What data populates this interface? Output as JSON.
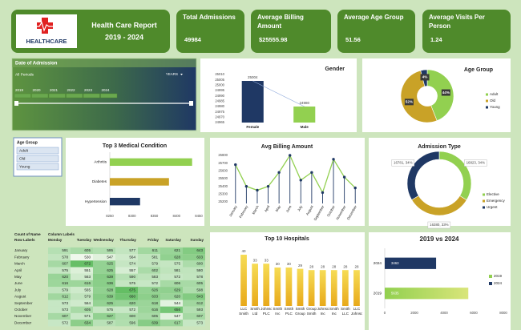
{
  "header": {
    "logo_text": "HEALTHCARE",
    "title": "Health Care Report",
    "subtitle": "2019 - 2024"
  },
  "kpis": [
    {
      "label": "Total Admissions",
      "value": 49984
    },
    {
      "label": "Average Billing Amount",
      "value": "$25555.98"
    },
    {
      "label": "Average Age Group",
      "value": 51.56
    },
    {
      "label": "Average Visits Per Person",
      "value": 1.24
    }
  ],
  "date_slicer": {
    "title": "Date of Admission",
    "period": "All Periods",
    "unit": "YEARS",
    "years": [
      2019,
      2020,
      2021,
      2022,
      2023,
      2024
    ]
  },
  "age_slicer": {
    "title": "Age Group",
    "items": [
      "Adult",
      "Old",
      "Young"
    ]
  },
  "table": {
    "corner": "Count of Name",
    "column_header": "Column Labels",
    "row_header": "Row Labels",
    "columns": [
      "Monday",
      "Tuesday",
      "Wednesday",
      "Thursday",
      "Friday",
      "Saturday",
      "Sunday"
    ],
    "rows": [
      [
        "January",
        591,
        605,
        595,
        577,
        611,
        621,
        643
      ],
      [
        "February",
        578,
        530,
        547,
        564,
        581,
        628,
        633
      ],
      [
        "March",
        607,
        672,
        625,
        574,
        579,
        575,
        600
      ],
      [
        "April",
        575,
        551,
        625,
        557,
        602,
        581,
        580
      ],
      [
        "May",
        620,
        563,
        639,
        590,
        583,
        572,
        578
      ],
      [
        "June",
        616,
        616,
        636,
        575,
        572,
        606,
        605
      ],
      [
        "July",
        579,
        565,
        628,
        675,
        626,
        629,
        598
      ],
      [
        "August",
        612,
        579,
        639,
        660,
        633,
        620,
        643
      ],
      [
        "September",
        573,
        564,
        625,
        620,
        618,
        544,
        612
      ],
      [
        "October",
        573,
        605,
        575,
        572,
        616,
        656,
        593
      ],
      [
        "November",
        607,
        571,
        627,
        600,
        605,
        547,
        607
      ],
      [
        "December",
        572,
        634,
        587,
        596,
        639,
        617,
        573
      ]
    ]
  },
  "chart_data": [
    {
      "type": "bar",
      "title": "Gender",
      "categories": [
        "Female",
        "Male"
      ],
      "values": [
        25004,
        24980
      ],
      "colors": [
        "#1f3864",
        "#92d050"
      ],
      "ylim": [
        24965,
        25010
      ],
      "yticks": [
        24965,
        24970,
        24975,
        24980,
        24985,
        24990,
        24995,
        25000,
        25005,
        25010
      ],
      "labels": true
    },
    {
      "type": "pie",
      "title": "Age Group",
      "categories": [
        "Adult",
        "Old",
        "Young"
      ],
      "values": [
        44,
        52,
        4
      ],
      "value_labels": [
        "44%",
        "52%",
        "4%"
      ],
      "colors": [
        "#92d050",
        "#c9a227",
        "#1f3864"
      ],
      "inner": 0.38,
      "label_style": "inside"
    },
    {
      "type": "hbar",
      "title": "Top 3 Medical Condition",
      "categories": [
        "Arthritis",
        "Diabetes",
        "Hypertension"
      ],
      "values": [
        8435,
        8383,
        8318
      ],
      "colors": [
        "#92d050",
        "#c9a227",
        "#1f3864"
      ],
      "xlim": [
        8250,
        8450
      ],
      "xticks": [
        8250,
        8300,
        8350,
        8400,
        8450
      ]
    },
    {
      "type": "line",
      "title": "Avg Billing Amount",
      "categories": [
        "January",
        "February",
        "March",
        "April",
        "May",
        "June",
        "July",
        "August",
        "September",
        "October",
        "November",
        "December"
      ],
      "values": [
        25680,
        25400,
        25350,
        25400,
        25580,
        25800,
        25480,
        25580,
        25320,
        25750,
        25520,
        25380
      ],
      "color": "#92d050",
      "marker_color": "#1f3864",
      "ylim": [
        25200,
        25800
      ],
      "yticks": [
        25200,
        25300,
        25400,
        25500,
        25600,
        25700,
        25800
      ]
    },
    {
      "type": "pie",
      "title": "Admission Type",
      "categories": [
        "Elective",
        "Emergency",
        "Urgent"
      ],
      "values": [
        16823,
        16380,
        16781
      ],
      "value_labels": [
        "16823, 34%",
        "16380, 33%",
        "16781, 34%"
      ],
      "colors": [
        "#92d050",
        "#c9a227",
        "#1f3864"
      ],
      "inner": 0.75,
      "label_style": "outside"
    },
    {
      "type": "bar",
      "title": "Top 10 Hospitals",
      "categories": [
        "LLC Smith",
        "Smith Ltd",
        "Johnson PLC",
        "Smith Inc",
        "Smith PLC",
        "Smith Group",
        "Group Smith",
        "Johnson Inc",
        "Smith Inc",
        "Smith LLC",
        "LLC Johnson"
      ],
      "values": [
        40,
        33,
        33,
        30,
        30,
        29,
        28,
        28,
        28,
        28,
        28
      ],
      "colors": [
        "url(#hosp)"
      ],
      "labels": true
    },
    {
      "type": "hbar",
      "title": "2019 vs 2024",
      "categories": [
        "2024",
        "2019"
      ],
      "values": [
        3463,
        5635
      ],
      "colors": [
        "#1f3864",
        "#92d050"
      ],
      "xlim": [
        0,
        8000
      ],
      "xticks": [
        0,
        2000,
        4000,
        6000,
        8000
      ],
      "labels": true,
      "legend": "right"
    }
  ]
}
